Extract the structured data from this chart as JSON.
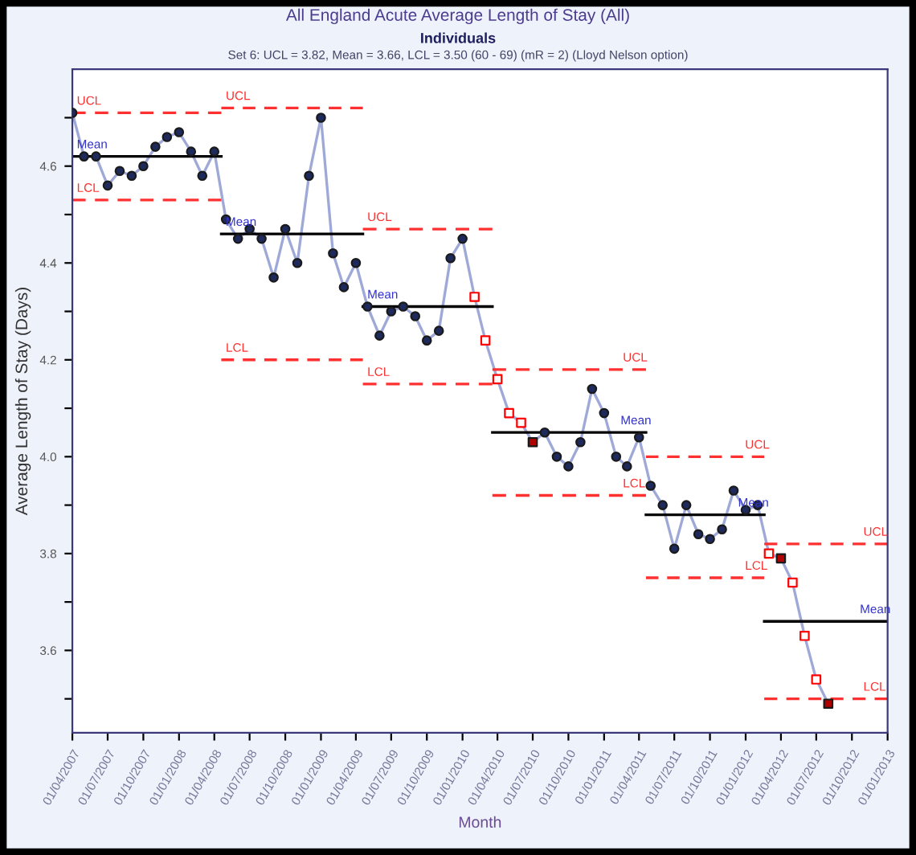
{
  "chart_data": {
    "type": "line",
    "title": "All England Acute Average Length of Stay (All)",
    "subtitle": "Individuals",
    "annotations": [
      "Set 6: UCL = 3.82, Mean = 3.66, LCL = 3.50 (60 - 69) (mR = 2) (Lloyd Nelson option)",
      {
        "text": "UCL",
        "x": "2007-04-01",
        "y": 4.71
      },
      {
        "text": "Mean",
        "x": "2007-04-01",
        "y": 4.62
      },
      {
        "text": "LCL",
        "x": "2007-04-01",
        "y": 4.53
      },
      {
        "text": "UCL",
        "x": "2008-04-19",
        "y": 4.72
      },
      {
        "text": "Mean",
        "x": "2008-04-19",
        "y": 4.46
      },
      {
        "text": "LCL",
        "x": "2008-04-19",
        "y": 4.2
      },
      {
        "text": "UCL",
        "x": "2009-04-19",
        "y": 4.47
      },
      {
        "text": "Mean",
        "x": "2009-04-19",
        "y": 4.31
      },
      {
        "text": "LCL",
        "x": "2009-04-19",
        "y": 4.15
      },
      {
        "text": "UCL",
        "x": "2011-02-07",
        "y": 4.18
      },
      {
        "text": "Mean",
        "x": "2011-02-01",
        "y": 4.05
      },
      {
        "text": "LCL",
        "x": "2011-02-07",
        "y": 3.92
      },
      {
        "text": "UCL",
        "x": "2011-12-19",
        "y": 4.0
      },
      {
        "text": "Mean",
        "x": "2011-12-01",
        "y": 3.88
      },
      {
        "text": "LCL",
        "x": "2011-12-19",
        "y": 3.75
      },
      {
        "text": "UCL",
        "x": "2012-10-19",
        "y": 3.82
      },
      {
        "text": "Mean",
        "x": "2012-10-10",
        "y": 3.66
      },
      {
        "text": "LCL",
        "x": "2012-10-19",
        "y": 3.5
      }
    ],
    "xlabel": "Month",
    "ylabel": "Average Length of Stay (Days)",
    "xlim": [
      "2007-04-01",
      "2013-01-01"
    ],
    "xticks": [
      {
        "value": "2007-04-01",
        "label": "01/04/2007"
      },
      {
        "value": "2007-07-01",
        "label": "01/07/2007"
      },
      {
        "value": "2007-10-01",
        "label": "01/10/2007"
      },
      {
        "value": "2008-01-01",
        "label": "01/01/2008"
      },
      {
        "value": "2008-04-01",
        "label": "01/04/2008"
      },
      {
        "value": "2008-07-01",
        "label": "01/07/2008"
      },
      {
        "value": "2008-10-01",
        "label": "01/10/2008"
      },
      {
        "value": "2009-01-01",
        "label": "01/01/2009"
      },
      {
        "value": "2009-04-01",
        "label": "01/04/2009"
      },
      {
        "value": "2009-07-01",
        "label": "01/07/2009"
      },
      {
        "value": "2009-10-01",
        "label": "01/10/2009"
      },
      {
        "value": "2010-01-01",
        "label": "01/01/2010"
      },
      {
        "value": "2010-04-01",
        "label": "01/04/2010"
      },
      {
        "value": "2010-07-01",
        "label": "01/07/2010"
      },
      {
        "value": "2010-10-01",
        "label": "01/10/2010"
      },
      {
        "value": "2011-01-01",
        "label": "01/01/2011"
      },
      {
        "value": "2011-04-01",
        "label": "01/04/2011"
      },
      {
        "value": "2011-07-01",
        "label": "01/07/2011"
      },
      {
        "value": "2011-10-01",
        "label": "01/10/2011"
      },
      {
        "value": "2012-01-01",
        "label": "01/01/2012"
      },
      {
        "value": "2012-04-01",
        "label": "01/04/2012"
      },
      {
        "value": "2012-07-01",
        "label": "01/07/2012"
      },
      {
        "value": "2012-10-01",
        "label": "01/10/2012"
      },
      {
        "value": "2013-01-01",
        "label": "01/01/2013"
      }
    ],
    "ylim": [
      3.43,
      4.8
    ],
    "yticks": [
      {
        "value": 3.5,
        "label": null
      },
      3.6,
      {
        "value": 3.7,
        "label": null
      },
      3.8,
      {
        "value": 3.9,
        "label": null
      },
      {
        "value": 4.0,
        "label": "4.0"
      },
      {
        "value": 4.1,
        "label": null
      },
      4.2,
      {
        "value": 4.3,
        "label": null
      },
      4.4,
      {
        "value": 4.5,
        "label": null
      },
      4.6,
      {
        "value": 4.7,
        "label": null
      }
    ],
    "grid": false,
    "legend": false,
    "x": [
      "2007-04",
      "2007-05",
      "2007-06",
      "2007-07",
      "2007-08",
      "2007-09",
      "2007-10",
      "2007-11",
      "2007-12",
      "2008-01",
      "2008-02",
      "2008-03",
      "2008-04",
      "2008-05",
      "2008-06",
      "2008-07",
      "2008-08",
      "2008-09",
      "2008-10",
      "2008-11",
      "2008-12",
      "2009-01",
      "2009-02",
      "2009-03",
      "2009-04",
      "2009-05",
      "2009-06",
      "2009-07",
      "2009-08",
      "2009-09",
      "2009-10",
      "2009-11",
      "2009-12",
      "2010-01",
      "2010-02",
      "2010-03",
      "2010-04",
      "2010-05",
      "2010-06",
      "2010-07",
      "2010-08",
      "2010-09",
      "2010-10",
      "2010-11",
      "2010-12",
      "2011-01",
      "2011-02",
      "2011-03",
      "2011-04",
      "2011-05",
      "2011-06",
      "2011-07",
      "2011-08",
      "2011-09",
      "2011-10",
      "2011-11",
      "2011-12",
      "2012-01",
      "2012-02",
      "2012-03",
      "2012-04",
      "2012-05",
      "2012-06",
      "2012-07",
      "2012-08"
    ],
    "series": [
      {
        "color": "#9fa9d8",
        "marker": "none",
        "line_style": "solid",
        "values": [
          4.71,
          4.62,
          4.62,
          4.56,
          4.59,
          4.58,
          4.6,
          4.64,
          4.66,
          4.67,
          4.63,
          4.58,
          4.63,
          4.49,
          4.45,
          4.47,
          4.45,
          4.37,
          4.47,
          4.4,
          4.58,
          4.7,
          4.42,
          4.35,
          4.4,
          4.31,
          4.25,
          4.3,
          4.31,
          4.29,
          4.24,
          4.26,
          4.41,
          4.45,
          4.33,
          4.24,
          4.16,
          4.09,
          4.07,
          4.03,
          4.05,
          4.0,
          3.98,
          4.03,
          4.14,
          4.09,
          4.0,
          3.98,
          4.04,
          3.94,
          3.9,
          3.81,
          3.9,
          3.84,
          3.83,
          3.85,
          3.93,
          3.89,
          3.9,
          3.8,
          3.79,
          3.74,
          3.63,
          3.54,
          3.49
        ]
      },
      {
        "type": "scatter",
        "color": "#1f2a5c",
        "marker": "circle",
        "x": [
          "2007-04",
          "2007-05",
          "2007-06",
          "2007-07",
          "2007-08",
          "2007-09",
          "2007-10",
          "2007-11",
          "2007-12",
          "2008-01",
          "2008-02",
          "2008-03",
          "2008-04",
          "2008-05",
          "2008-06",
          "2008-07",
          "2008-08",
          "2008-09",
          "2008-10",
          "2008-11",
          "2008-12",
          "2009-01",
          "2009-02",
          "2009-03",
          "2009-04",
          "2009-05",
          "2009-06",
          "2009-07",
          "2009-08",
          "2009-09",
          "2009-10",
          "2009-11",
          "2009-12",
          "2010-01",
          "2010-08",
          "2010-09",
          "2010-10",
          "2010-11",
          "2010-12",
          "2011-01",
          "2011-02",
          "2011-03",
          "2011-04",
          "2011-05",
          "2011-06",
          "2011-07",
          "2011-08",
          "2011-09",
          "2011-10",
          "2011-11",
          "2011-12",
          "2012-01",
          "2012-02"
        ],
        "values": [
          4.71,
          4.62,
          4.62,
          4.56,
          4.59,
          4.58,
          4.6,
          4.64,
          4.66,
          4.67,
          4.63,
          4.58,
          4.63,
          4.49,
          4.45,
          4.47,
          4.45,
          4.37,
          4.47,
          4.4,
          4.58,
          4.7,
          4.42,
          4.35,
          4.4,
          4.31,
          4.25,
          4.3,
          4.31,
          4.29,
          4.24,
          4.26,
          4.41,
          4.45,
          4.05,
          4.0,
          3.98,
          4.03,
          4.14,
          4.09,
          4.0,
          3.98,
          4.04,
          3.94,
          3.9,
          3.81,
          3.9,
          3.84,
          3.83,
          3.85,
          3.93,
          3.89,
          3.9
        ]
      },
      {
        "type": "scatter",
        "color": "#ff0000",
        "marker": "square",
        "colors": [
          "#ffffff",
          "#ffffff",
          "#ffffff",
          "#ffffff",
          "#ffffff",
          "#ffffff",
          "#ffffff",
          "#ffffff",
          "#ffffff"
        ],
        "x": [
          "2010-02",
          "2010-03",
          "2010-04",
          "2010-05",
          "2010-06",
          "2012-03",
          "2012-05",
          "2012-06",
          "2012-07"
        ],
        "values": [
          4.33,
          4.24,
          4.16,
          4.09,
          4.07,
          3.8,
          3.74,
          3.63,
          3.54
        ]
      },
      {
        "type": "scatter",
        "color": "#b00000",
        "marker": "square",
        "x": [
          "2010-07",
          "2012-04",
          "2012-08"
        ],
        "values": [
          4.03,
          3.79,
          3.49
        ]
      },
      {
        "type": "line",
        "color": "#ff3030",
        "marker": "none",
        "line_style": "dashed",
        "x": [
          "2007-04-01",
          "2008-04-19"
        ],
        "values": [
          4.71,
          4.71
        ]
      },
      {
        "type": "line",
        "color": "#000000",
        "marker": "none",
        "line_style": "solid",
        "x": [
          "2007-04-01",
          "2008-04-19"
        ],
        "values": [
          4.62,
          4.62
        ]
      },
      {
        "type": "line",
        "color": "#ff3030",
        "marker": "none",
        "line_style": "dashed",
        "x": [
          "2007-04-01",
          "2008-04-19"
        ],
        "values": [
          4.53,
          4.53
        ]
      },
      {
        "type": "line",
        "color": "#ff3030",
        "marker": "none",
        "line_style": "dashed",
        "x": [
          "2008-04-19",
          "2009-04-19"
        ],
        "values": [
          4.72,
          4.72
        ]
      },
      {
        "type": "line",
        "color": "#000000",
        "marker": "none",
        "line_style": "solid",
        "x": [
          "2008-04-19",
          "2009-04-19"
        ],
        "values": [
          4.46,
          4.46
        ]
      },
      {
        "type": "line",
        "color": "#ff3030",
        "marker": "none",
        "line_style": "dashed",
        "x": [
          "2008-04-19",
          "2009-04-19"
        ],
        "values": [
          4.2,
          4.2
        ]
      },
      {
        "type": "line",
        "color": "#ff3030",
        "marker": "none",
        "line_style": "dashed",
        "x": [
          "2009-04-19",
          "2010-03-19"
        ],
        "values": [
          4.47,
          4.47
        ]
      },
      {
        "type": "line",
        "color": "#000000",
        "marker": "none",
        "line_style": "solid",
        "x": [
          "2009-04-19",
          "2010-03-19"
        ],
        "values": [
          4.31,
          4.31
        ]
      },
      {
        "type": "line",
        "color": "#ff3030",
        "marker": "none",
        "line_style": "dashed",
        "x": [
          "2009-04-19",
          "2010-03-19"
        ],
        "values": [
          4.15,
          4.15
        ]
      },
      {
        "type": "line",
        "color": "#ff3030",
        "marker": "none",
        "line_style": "dashed",
        "x": [
          "2010-03-19",
          "2011-04-19"
        ],
        "values": [
          4.18,
          4.18
        ]
      },
      {
        "type": "line",
        "color": "#000000",
        "marker": "none",
        "line_style": "solid",
        "x": [
          "2010-03-19",
          "2011-04-19"
        ],
        "values": [
          4.05,
          4.05
        ]
      },
      {
        "type": "line",
        "color": "#ff3030",
        "marker": "none",
        "line_style": "dashed",
        "x": [
          "2010-03-19",
          "2011-04-19"
        ],
        "values": [
          3.92,
          3.92
        ]
      },
      {
        "type": "line",
        "color": "#ff3030",
        "marker": "none",
        "line_style": "dashed",
        "x": [
          "2011-04-19",
          "2012-02-18"
        ],
        "values": [
          4.0,
          4.0
        ]
      },
      {
        "type": "line",
        "color": "#000000",
        "marker": "none",
        "line_style": "solid",
        "x": [
          "2011-04-19",
          "2012-02-18"
        ],
        "values": [
          3.88,
          3.88
        ]
      },
      {
        "type": "line",
        "color": "#ff3030",
        "marker": "none",
        "line_style": "dashed",
        "x": [
          "2011-04-19",
          "2012-02-18"
        ],
        "values": [
          3.75,
          3.75
        ]
      },
      {
        "type": "line",
        "color": "#ff3030",
        "marker": "none",
        "line_style": "dashed",
        "x": [
          "2012-02-18",
          "2013-01-01"
        ],
        "values": [
          3.82,
          3.82
        ]
      },
      {
        "type": "line",
        "color": "#000000",
        "marker": "none",
        "line_style": "solid",
        "x": [
          "2012-02-18",
          "2013-01-01"
        ],
        "values": [
          3.66,
          3.66
        ]
      },
      {
        "type": "line",
        "color": "#ff3030",
        "marker": "none",
        "line_style": "dashed",
        "x": [
          "2012-02-18",
          "2013-01-01"
        ],
        "values": [
          3.5,
          3.5
        ]
      }
    ]
  }
}
